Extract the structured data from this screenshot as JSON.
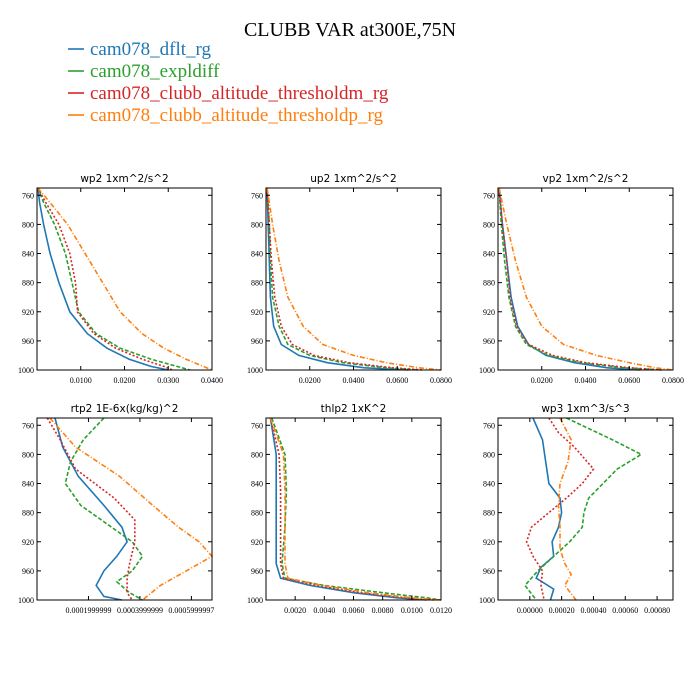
{
  "title": "CLUBB VAR at300E,75N",
  "legend": [
    {
      "label": "cam078_dflt_rg",
      "color": "#1f77b4"
    },
    {
      "label": "cam078_expldiff",
      "color": "#2ca02c"
    },
    {
      "label": "cam078_clubb_altitude_thresholdm_rg",
      "color": "#d62728"
    },
    {
      "label": "cam078_clubb_altitude_thresholdp_rg",
      "color": "#ff7f0e"
    }
  ],
  "chart_data": [
    {
      "type": "line",
      "title": "wp2   1xm^2/s^2",
      "xlim": [
        0,
        0.04
      ],
      "ylim": [
        1000,
        750
      ],
      "xticks": [
        0.01,
        0.02,
        0.03,
        0.04
      ],
      "xtick_labels": [
        "0.0100",
        "0.0200",
        "0.0300",
        "0.0400"
      ],
      "yticks": [
        760,
        800,
        840,
        880,
        920,
        960,
        1000
      ],
      "ytick_labels": [
        "760",
        "800",
        "840",
        "880",
        "920",
        "960",
        "1000"
      ],
      "series": [
        {
          "name": "cam078_dflt_rg",
          "y": [
            750,
            770,
            800,
            840,
            880,
            920,
            950,
            970,
            985,
            995,
            1000
          ],
          "x": [
            0.0002,
            0.0006,
            0.0015,
            0.003,
            0.005,
            0.0075,
            0.0115,
            0.016,
            0.021,
            0.026,
            0.03
          ]
        },
        {
          "name": "cam078_expldiff",
          "y": [
            750,
            770,
            800,
            840,
            880,
            920,
            950,
            970,
            985,
            995,
            1000
          ],
          "x": [
            0.0002,
            0.0015,
            0.004,
            0.0065,
            0.008,
            0.0095,
            0.0135,
            0.019,
            0.026,
            0.032,
            0.035
          ]
        },
        {
          "name": "cam078_clubb_altitude_thresholdm_rg",
          "y": [
            750,
            770,
            800,
            840,
            880,
            915,
            920,
            950,
            970,
            985,
            995,
            1000
          ],
          "x": [
            0.0002,
            0.002,
            0.005,
            0.0075,
            0.0088,
            0.0092,
            0.0092,
            0.013,
            0.018,
            0.024,
            0.029,
            0.031
          ]
        },
        {
          "name": "cam078_clubb_altitude_thresholdp_rg",
          "y": [
            750,
            770,
            800,
            840,
            880,
            920,
            950,
            970,
            985,
            995,
            1000
          ],
          "x": [
            0.0002,
            0.003,
            0.007,
            0.011,
            0.015,
            0.019,
            0.024,
            0.029,
            0.034,
            0.038,
            0.04
          ]
        }
      ]
    },
    {
      "type": "line",
      "title": "up2   1xm^2/s^2",
      "xlim": [
        0,
        0.08
      ],
      "ylim": [
        1000,
        750
      ],
      "xticks": [
        0.02,
        0.04,
        0.06,
        0.08
      ],
      "xtick_labels": [
        "0.0200",
        "0.0400",
        "0.0600",
        "0.0800"
      ],
      "yticks": [
        760,
        800,
        840,
        880,
        920,
        960,
        1000
      ],
      "ytick_labels": [
        "760",
        "800",
        "840",
        "880",
        "920",
        "960",
        "1000"
      ],
      "series": [
        {
          "name": "cam078_dflt_rg",
          "y": [
            750,
            800,
            850,
            900,
            940,
            965,
            980,
            990,
            997,
            1000
          ],
          "x": [
            0.0005,
            0.001,
            0.0015,
            0.002,
            0.0035,
            0.007,
            0.015,
            0.028,
            0.045,
            0.065
          ]
        },
        {
          "name": "cam078_expldiff",
          "y": [
            750,
            800,
            850,
            900,
            940,
            965,
            980,
            990,
            997,
            1000
          ],
          "x": [
            0.0005,
            0.0015,
            0.002,
            0.003,
            0.006,
            0.01,
            0.02,
            0.035,
            0.055,
            0.07
          ]
        },
        {
          "name": "cam078_clubb_altitude_thresholdm_rg",
          "y": [
            750,
            800,
            850,
            900,
            940,
            965,
            980,
            990,
            997,
            1000
          ],
          "x": [
            0.0005,
            0.0015,
            0.0025,
            0.004,
            0.007,
            0.012,
            0.022,
            0.038,
            0.058,
            0.072
          ]
        },
        {
          "name": "cam078_clubb_altitude_thresholdp_rg",
          "y": [
            750,
            800,
            850,
            900,
            940,
            965,
            980,
            990,
            997,
            1000
          ],
          "x": [
            0.0005,
            0.003,
            0.006,
            0.01,
            0.017,
            0.026,
            0.04,
            0.055,
            0.07,
            0.08
          ]
        }
      ]
    },
    {
      "type": "line",
      "title": "vp2   1xm^2/s^2",
      "xlim": [
        0,
        0.08
      ],
      "ylim": [
        1000,
        750
      ],
      "xticks": [
        0.02,
        0.04,
        0.06,
        0.08
      ],
      "xtick_labels": [
        "0.0200",
        "0.0400",
        "0.0600",
        "0.0800"
      ],
      "yticks": [
        760,
        800,
        840,
        880,
        920,
        960,
        1000
      ],
      "ytick_labels": [
        "760",
        "800",
        "840",
        "880",
        "920",
        "960",
        "1000"
      ],
      "series": [
        {
          "name": "cam078_dflt_rg",
          "y": [
            750,
            800,
            850,
            900,
            940,
            965,
            980,
            990,
            997,
            1000
          ],
          "x": [
            0.0005,
            0.002,
            0.004,
            0.006,
            0.009,
            0.014,
            0.022,
            0.035,
            0.05,
            0.065
          ]
        },
        {
          "name": "cam078_expldiff",
          "y": [
            750,
            800,
            850,
            900,
            940,
            965,
            980,
            990,
            997,
            1000
          ],
          "x": [
            0.0005,
            0.0015,
            0.003,
            0.005,
            0.008,
            0.013,
            0.023,
            0.038,
            0.058,
            0.075
          ]
        },
        {
          "name": "cam078_clubb_altitude_thresholdm_rg",
          "y": [
            750,
            800,
            850,
            900,
            940,
            965,
            980,
            990,
            997,
            1000
          ],
          "x": [
            0.0005,
            0.002,
            0.004,
            0.0055,
            0.0085,
            0.014,
            0.025,
            0.04,
            0.06,
            0.075
          ]
        },
        {
          "name": "cam078_clubb_altitude_thresholdp_rg",
          "y": [
            750,
            800,
            850,
            900,
            940,
            965,
            980,
            990,
            997,
            1000
          ],
          "x": [
            0.0005,
            0.004,
            0.008,
            0.013,
            0.02,
            0.03,
            0.045,
            0.06,
            0.072,
            0.08
          ]
        }
      ]
    },
    {
      "type": "line",
      "title": "rtp2   1E-6x(kg/kg)^2",
      "xlim": [
        0,
        0.00068
      ],
      "ylim": [
        1000,
        750
      ],
      "xticks": [
        0.0002,
        0.0004,
        0.0006
      ],
      "xtick_labels": [
        "0.0001999999",
        "0.0003999999",
        "0.0005999997"
      ],
      "yticks": [
        760,
        800,
        840,
        880,
        920,
        960,
        1000
      ],
      "ytick_labels": [
        "760",
        "800",
        "840",
        "880",
        "920",
        "960",
        "1000"
      ],
      "series": [
        {
          "name": "cam078_dflt_rg",
          "y": [
            750,
            790,
            830,
            870,
            900,
            920,
            940,
            960,
            980,
            995,
            1000
          ],
          "x": [
            7e-05,
            0.0001,
            0.00016,
            0.00026,
            0.00033,
            0.00035,
            0.00031,
            0.00026,
            0.00023,
            0.00026,
            0.00033
          ]
        },
        {
          "name": "cam078_expldiff",
          "y": [
            750,
            780,
            810,
            840,
            870,
            900,
            920,
            940,
            960,
            975,
            990,
            1000
          ],
          "x": [
            0.00026,
            0.00018,
            0.00013,
            0.00011,
            0.00017,
            0.00029,
            0.00037,
            0.00041,
            0.00037,
            0.00031,
            0.00036,
            0.00041
          ]
        },
        {
          "name": "cam078_clubb_altitude_thresholdm_rg",
          "y": [
            750,
            780,
            820,
            860,
            890,
            920,
            950,
            970,
            990,
            1000
          ],
          "x": [
            4e-05,
            9e-05,
            0.00015,
            0.0003,
            0.00038,
            0.00038,
            0.00036,
            0.00035,
            0.00035,
            0.00037
          ]
        },
        {
          "name": "cam078_clubb_altitude_thresholdp_rg",
          "y": [
            750,
            790,
            830,
            870,
            900,
            920,
            940,
            960,
            980,
            1000
          ],
          "x": [
            5e-05,
            0.00015,
            0.00032,
            0.00045,
            0.00055,
            0.00063,
            0.00068,
            0.00058,
            0.00048,
            0.00041
          ]
        }
      ]
    },
    {
      "type": "line",
      "title": "thlp2   1xK^2",
      "xlim": [
        0,
        0.012
      ],
      "ylim": [
        1000,
        750
      ],
      "xticks": [
        0.002,
        0.004,
        0.006,
        0.008,
        0.01,
        0.012
      ],
      "xtick_labels": [
        "0.0020",
        "0.0040",
        "0.0060",
        "0.0080",
        "0.0100",
        "0.0120"
      ],
      "yticks": [
        760,
        800,
        840,
        880,
        920,
        960,
        1000
      ],
      "ytick_labels": [
        "760",
        "800",
        "840",
        "880",
        "920",
        "960",
        "1000"
      ],
      "series": [
        {
          "name": "cam078_dflt_rg",
          "y": [
            750,
            800,
            850,
            900,
            950,
            970,
            980,
            990,
            997,
            1000
          ],
          "x": [
            0.0003,
            0.0007,
            0.0007,
            0.0007,
            0.0007,
            0.001,
            0.003,
            0.006,
            0.009,
            0.011
          ]
        },
        {
          "name": "cam078_expldiff",
          "y": [
            750,
            800,
            850,
            900,
            950,
            970,
            980,
            990,
            997,
            1000
          ],
          "x": [
            0.0004,
            0.0013,
            0.0014,
            0.0013,
            0.0011,
            0.0013,
            0.004,
            0.008,
            0.011,
            0.012
          ]
        },
        {
          "name": "cam078_clubb_altitude_thresholdm_rg",
          "y": [
            750,
            800,
            850,
            900,
            950,
            970,
            980,
            990,
            997,
            1000
          ],
          "x": [
            0.0003,
            0.0009,
            0.001,
            0.001,
            0.001,
            0.0012,
            0.0035,
            0.0065,
            0.0095,
            0.0115
          ]
        },
        {
          "name": "cam078_clubb_altitude_thresholdp_rg",
          "y": [
            750,
            800,
            850,
            900,
            950,
            970,
            980,
            990,
            997,
            1000
          ],
          "x": [
            0.0003,
            0.0012,
            0.0013,
            0.0013,
            0.0013,
            0.0015,
            0.0038,
            0.007,
            0.01,
            0.012
          ]
        }
      ]
    },
    {
      "type": "line",
      "title": "wp3   1xm^3/s^3",
      "xlim": [
        -0.0002,
        0.0009
      ],
      "ylim": [
        1000,
        750
      ],
      "xticks": [
        0.0,
        0.0002,
        0.0004,
        0.0006,
        0.0008
      ],
      "xtick_labels": [
        "0.00000",
        "0.00020",
        "0.00040",
        "0.00060",
        "0.00080"
      ],
      "yticks": [
        760,
        800,
        840,
        880,
        920,
        960,
        1000
      ],
      "ytick_labels": [
        "760",
        "800",
        "840",
        "880",
        "920",
        "960",
        "1000"
      ],
      "series": [
        {
          "name": "cam078_dflt_rg",
          "y": [
            750,
            780,
            810,
            840,
            860,
            880,
            900,
            920,
            940,
            955,
            970,
            985,
            1000
          ],
          "x": [
            2e-05,
            8e-05,
            0.0001,
            0.00012,
            0.00019,
            0.0002,
            0.00018,
            0.00014,
            0.00015,
            7e-05,
            4e-05,
            0.00015,
            0.00013
          ]
        },
        {
          "name": "cam078_expldiff",
          "y": [
            750,
            780,
            800,
            820,
            840,
            860,
            880,
            900,
            920,
            940,
            960,
            980,
            1000
          ],
          "x": [
            0.00023,
            0.00052,
            0.0007,
            0.00055,
            0.00046,
            0.00037,
            0.00034,
            0.00033,
            0.00025,
            0.00015,
            5e-05,
            -3e-05,
            4e-05
          ]
        },
        {
          "name": "cam078_clubb_altitude_thresholdm_rg",
          "y": [
            750,
            770,
            790,
            820,
            840,
            860,
            880,
            900,
            920,
            940,
            960,
            980,
            1000
          ],
          "x": [
            0.00012,
            0.00018,
            0.00028,
            0.0004,
            0.00033,
            0.00023,
            0.00012,
            1e-05,
            -2e-05,
            2e-05,
            8e-05,
            7e-05,
            9e-05
          ]
        },
        {
          "name": "cam078_clubb_altitude_thresholdp_rg",
          "y": [
            750,
            780,
            810,
            840,
            870,
            900,
            930,
            950,
            965,
            980,
            1000
          ],
          "x": [
            0.00019,
            0.00026,
            0.00024,
            0.00019,
            0.00018,
            0.00019,
            0.00019,
            0.00022,
            0.00026,
            0.00022,
            0.00029
          ]
        }
      ]
    }
  ]
}
